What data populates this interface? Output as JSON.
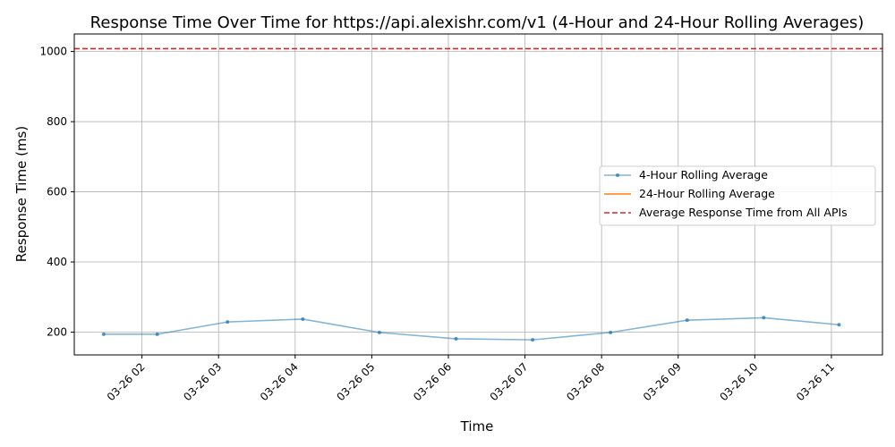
{
  "chart_data": {
    "type": "line",
    "title": "Response Time Over Time for https://api.alexishr.com/v1 (4-Hour and 24-Hour Rolling Averages)",
    "xlabel": "Time",
    "ylabel": "Response Time (ms)",
    "x_ticks": [
      "03-26 02",
      "03-26 03",
      "03-26 04",
      "03-26 05",
      "03-26 06",
      "03-26 07",
      "03-26 08",
      "03-26 09",
      "03-26 10",
      "03-26 11"
    ],
    "y_ticks": [
      200,
      400,
      600,
      800,
      1000
    ],
    "xlim": [
      "03-26 01:07",
      "03-26 11:40"
    ],
    "ylim": [
      135,
      1050
    ],
    "grid": true,
    "legend_position": "right",
    "series": [
      {
        "name": "4-Hour Rolling Average",
        "color": "#1f77b4",
        "style": "line-with-markers",
        "x": [
          "03-26 01:30",
          "03-26 02:12",
          "03-26 03:07",
          "03-26 04:06",
          "03-26 05:06",
          "03-26 06:06",
          "03-26 07:06",
          "03-26 08:07",
          "03-26 09:07",
          "03-26 10:07",
          "03-26 11:06"
        ],
        "values": [
          194,
          194,
          229,
          237,
          199,
          181,
          178,
          199,
          234,
          241,
          221
        ]
      },
      {
        "name": "24-Hour Rolling Average",
        "color": "#ff7f0e",
        "style": "line",
        "x": [],
        "values": []
      }
    ],
    "reference_lines": [
      {
        "name": "Average Response Time from All APIs",
        "color": "#d62728",
        "style": "dashed",
        "y": 1008
      }
    ]
  }
}
